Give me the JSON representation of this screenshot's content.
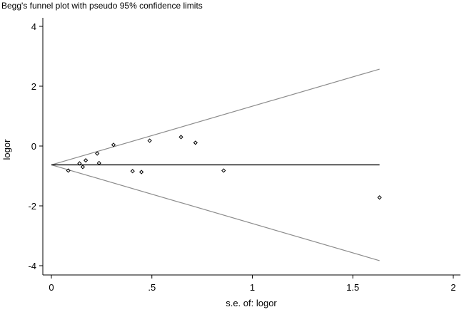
{
  "chart_data": {
    "type": "scatter",
    "title": "Begg's funnel plot with pseudo 95% confidence limits",
    "xlabel": "s.e. of: logor",
    "ylabel": "logor",
    "xlim": [
      0,
      2
    ],
    "ylim": [
      -4,
      4
    ],
    "xticks": [
      0,
      0.5,
      1,
      1.5,
      2
    ],
    "xtick_labels": [
      "0",
      ".5",
      "1",
      "1.5",
      "2"
    ],
    "yticks": [
      4,
      2,
      0,
      -2,
      -4
    ],
    "ytick_labels": [
      "4",
      "2",
      "0",
      "-2",
      "-4"
    ],
    "grid": false,
    "points": [
      {
        "x": 0.084,
        "y": -0.82
      },
      {
        "x": 0.14,
        "y": -0.58
      },
      {
        "x": 0.156,
        "y": -0.7
      },
      {
        "x": 0.171,
        "y": -0.48
      },
      {
        "x": 0.228,
        "y": -0.25
      },
      {
        "x": 0.237,
        "y": -0.57
      },
      {
        "x": 0.309,
        "y": 0.04
      },
      {
        "x": 0.404,
        "y": -0.84
      },
      {
        "x": 0.448,
        "y": -0.87
      },
      {
        "x": 0.489,
        "y": 0.18
      },
      {
        "x": 0.645,
        "y": 0.3
      },
      {
        "x": 0.717,
        "y": 0.11
      },
      {
        "x": 0.857,
        "y": -0.82
      },
      {
        "x": 1.633,
        "y": -1.72
      }
    ],
    "pooled_estimate": -0.63,
    "max_se": 1.633,
    "confidence_z": 1.96,
    "colors": {
      "points": "#000000",
      "pooled_line": "#000000",
      "limits": "#8c8c8c"
    }
  }
}
